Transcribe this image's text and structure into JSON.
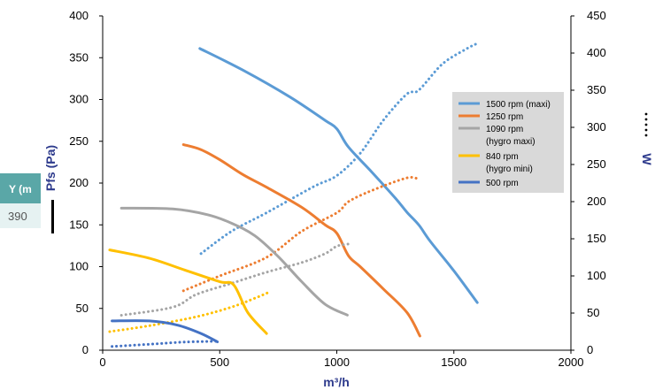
{
  "colors": {
    "axis_title": "#2d3a8c",
    "legend_bg": "#d9d9d9",
    "table_header": "#5aa7a7",
    "table_cell_bg": "#e6f2f2",
    "series": [
      "#5b9bd5",
      "#ed7d31",
      "#a5a5a5",
      "#ffc000",
      "#4472c4"
    ]
  },
  "table_fragment": {
    "header": "Y (m",
    "value": "390"
  },
  "right_axis_marker": "W ·····",
  "chart_data": {
    "type": "line",
    "title": "",
    "xlabel": "m³/h",
    "ylabel": "Pfs (Pa)",
    "y2label": "W",
    "xlim": [
      0,
      2000
    ],
    "ylim": [
      0,
      400
    ],
    "y2lim": [
      0,
      450
    ],
    "x_ticks": [
      "0",
      "500",
      "1000",
      "1500",
      "2000"
    ],
    "y_ticks": [
      "0",
      "50",
      "100",
      "150",
      "200",
      "250",
      "300",
      "350",
      "400"
    ],
    "y2_ticks": [
      "0",
      "50",
      "100",
      "150",
      "200",
      "250",
      "300",
      "350",
      "400",
      "450"
    ],
    "legend_position": "right",
    "series": [
      {
        "name": "1500 rpm (maxi)",
        "pressure": [
          [
            415,
            361
          ],
          [
            600,
            335
          ],
          [
            800,
            303
          ],
          [
            950,
            275
          ],
          [
            1000,
            265
          ],
          [
            1050,
            243
          ],
          [
            1150,
            213
          ],
          [
            1250,
            182
          ],
          [
            1300,
            165
          ],
          [
            1350,
            150
          ],
          [
            1400,
            130
          ],
          [
            1500,
            95
          ],
          [
            1600,
            57
          ]
        ],
        "power": [
          [
            420,
            130
          ],
          [
            550,
            160
          ],
          [
            700,
            185
          ],
          [
            900,
            220
          ],
          [
            1000,
            235
          ],
          [
            1100,
            265
          ],
          [
            1200,
            310
          ],
          [
            1300,
            345
          ],
          [
            1350,
            350
          ],
          [
            1450,
            385
          ],
          [
            1550,
            405
          ],
          [
            1600,
            413
          ]
        ]
      },
      {
        "name": "1250 rpm",
        "pressure": [
          [
            345,
            246
          ],
          [
            420,
            240
          ],
          [
            500,
            228
          ],
          [
            600,
            210
          ],
          [
            700,
            195
          ],
          [
            850,
            171
          ],
          [
            950,
            150
          ],
          [
            1000,
            140
          ],
          [
            1050,
            113
          ],
          [
            1100,
            100
          ],
          [
            1200,
            73
          ],
          [
            1300,
            45
          ],
          [
            1355,
            17
          ]
        ],
        "power": [
          [
            345,
            80
          ],
          [
            500,
            100
          ],
          [
            700,
            125
          ],
          [
            850,
            160
          ],
          [
            1000,
            185
          ],
          [
            1050,
            200
          ],
          [
            1150,
            215
          ],
          [
            1300,
            232
          ],
          [
            1350,
            230
          ]
        ]
      },
      {
        "name": "1090 rpm\n(hygro maxi)",
        "pressure": [
          [
            80,
            170
          ],
          [
            300,
            169
          ],
          [
            450,
            162
          ],
          [
            550,
            152
          ],
          [
            650,
            137
          ],
          [
            750,
            112
          ],
          [
            850,
            82
          ],
          [
            950,
            55
          ],
          [
            1045,
            42
          ]
        ],
        "power": [
          [
            80,
            47
          ],
          [
            300,
            58
          ],
          [
            400,
            75
          ],
          [
            550,
            90
          ],
          [
            700,
            105
          ],
          [
            850,
            118
          ],
          [
            950,
            130
          ],
          [
            1000,
            140
          ],
          [
            1050,
            143
          ]
        ]
      },
      {
        "name": "840 rpm\n(hygro mini)",
        "pressure": [
          [
            30,
            120
          ],
          [
            200,
            110
          ],
          [
            350,
            96
          ],
          [
            500,
            82
          ],
          [
            560,
            78
          ],
          [
            620,
            45
          ],
          [
            700,
            20
          ]
        ],
        "power": [
          [
            30,
            25
          ],
          [
            200,
            33
          ],
          [
            400,
            45
          ],
          [
            550,
            58
          ],
          [
            650,
            70
          ],
          [
            710,
            78
          ]
        ]
      },
      {
        "name": "500 rpm",
        "pressure": [
          [
            40,
            35
          ],
          [
            200,
            35
          ],
          [
            320,
            30
          ],
          [
            420,
            20
          ],
          [
            490,
            10
          ]
        ],
        "power": [
          [
            40,
            5
          ],
          [
            200,
            8
          ],
          [
            350,
            11
          ],
          [
            490,
            12
          ]
        ]
      }
    ]
  }
}
